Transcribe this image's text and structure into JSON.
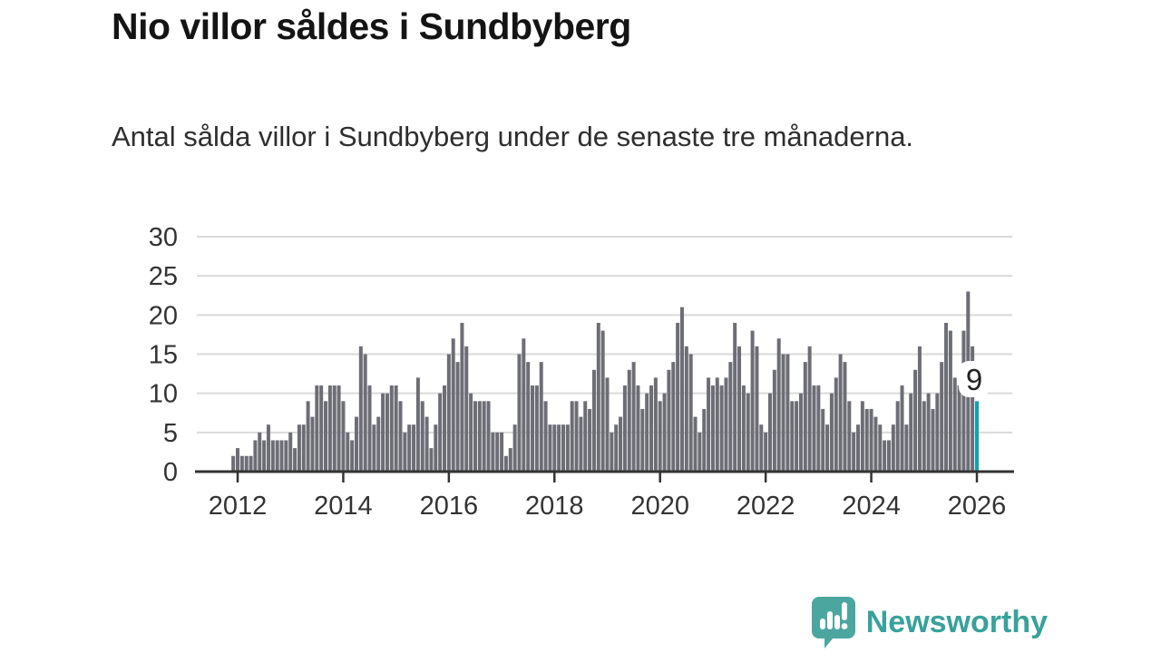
{
  "header": {
    "title": "Nio villor såldes i Sundbyberg",
    "subtitle": "Antal sålda villor i Sundbyberg under de senaste tre månaderna."
  },
  "chart_data": {
    "type": "bar",
    "title": "Nio villor såldes i Sundbyberg",
    "subtitle": "Antal sålda villor i Sundbyberg under de senaste tre månaderna.",
    "frequency": "monthly",
    "x_start": "2011-12",
    "x_end": "2026-01",
    "values": [
      2,
      3,
      2,
      2,
      2,
      4,
      5,
      4,
      6,
      4,
      4,
      4,
      4,
      5,
      3,
      6,
      6,
      9,
      7,
      11,
      11,
      9,
      11,
      11,
      11,
      9,
      5,
      4,
      7,
      16,
      15,
      11,
      6,
      7,
      10,
      10,
      11,
      11,
      9,
      5,
      6,
      6,
      12,
      9,
      7,
      3,
      6,
      10,
      11,
      15,
      17,
      14,
      19,
      16,
      10,
      9,
      9,
      9,
      9,
      5,
      5,
      5,
      2,
      3,
      6,
      15,
      17,
      14,
      11,
      11,
      14,
      9,
      6,
      6,
      6,
      6,
      6,
      9,
      9,
      7,
      9,
      8,
      13,
      19,
      18,
      12,
      5,
      6,
      7,
      11,
      13,
      14,
      11,
      8,
      10,
      11,
      12,
      9,
      10,
      13,
      14,
      19,
      21,
      16,
      15,
      7,
      5,
      8,
      12,
      11,
      12,
      11,
      12,
      14,
      19,
      16,
      11,
      10,
      18,
      16,
      6,
      5,
      10,
      13,
      17,
      15,
      15,
      9,
      9,
      10,
      14,
      16,
      11,
      11,
      8,
      6,
      10,
      12,
      15,
      14,
      9,
      5,
      6,
      9,
      8,
      8,
      7,
      6,
      4,
      4,
      6,
      9,
      11,
      6,
      10,
      13,
      16,
      9,
      10,
      8,
      10,
      14,
      19,
      18,
      12,
      11,
      18,
      23,
      16,
      9
    ],
    "highlight": {
      "index": 169,
      "value": 9,
      "label": "9",
      "month": "2026-01"
    },
    "ylim": [
      0,
      30
    ],
    "yticks": [
      0,
      5,
      10,
      15,
      20,
      25,
      30
    ],
    "xticks": [
      2012,
      2014,
      2016,
      2018,
      2020,
      2022,
      2024,
      2026
    ],
    "grid": true,
    "legend": false,
    "colors": {
      "bar": "#6d6d76",
      "highlight": "#0da2aa",
      "grid": "#d9d9d9",
      "axis": "#333333",
      "tick_label": "#333333",
      "annotation_text": "#222222",
      "annotation_bg": "#ffffff"
    }
  },
  "footer": {
    "brand": "Newsworthy",
    "brand_color": "#38a19b",
    "logo_icon": "newsworthy-speech-bubble-chart-icon"
  }
}
